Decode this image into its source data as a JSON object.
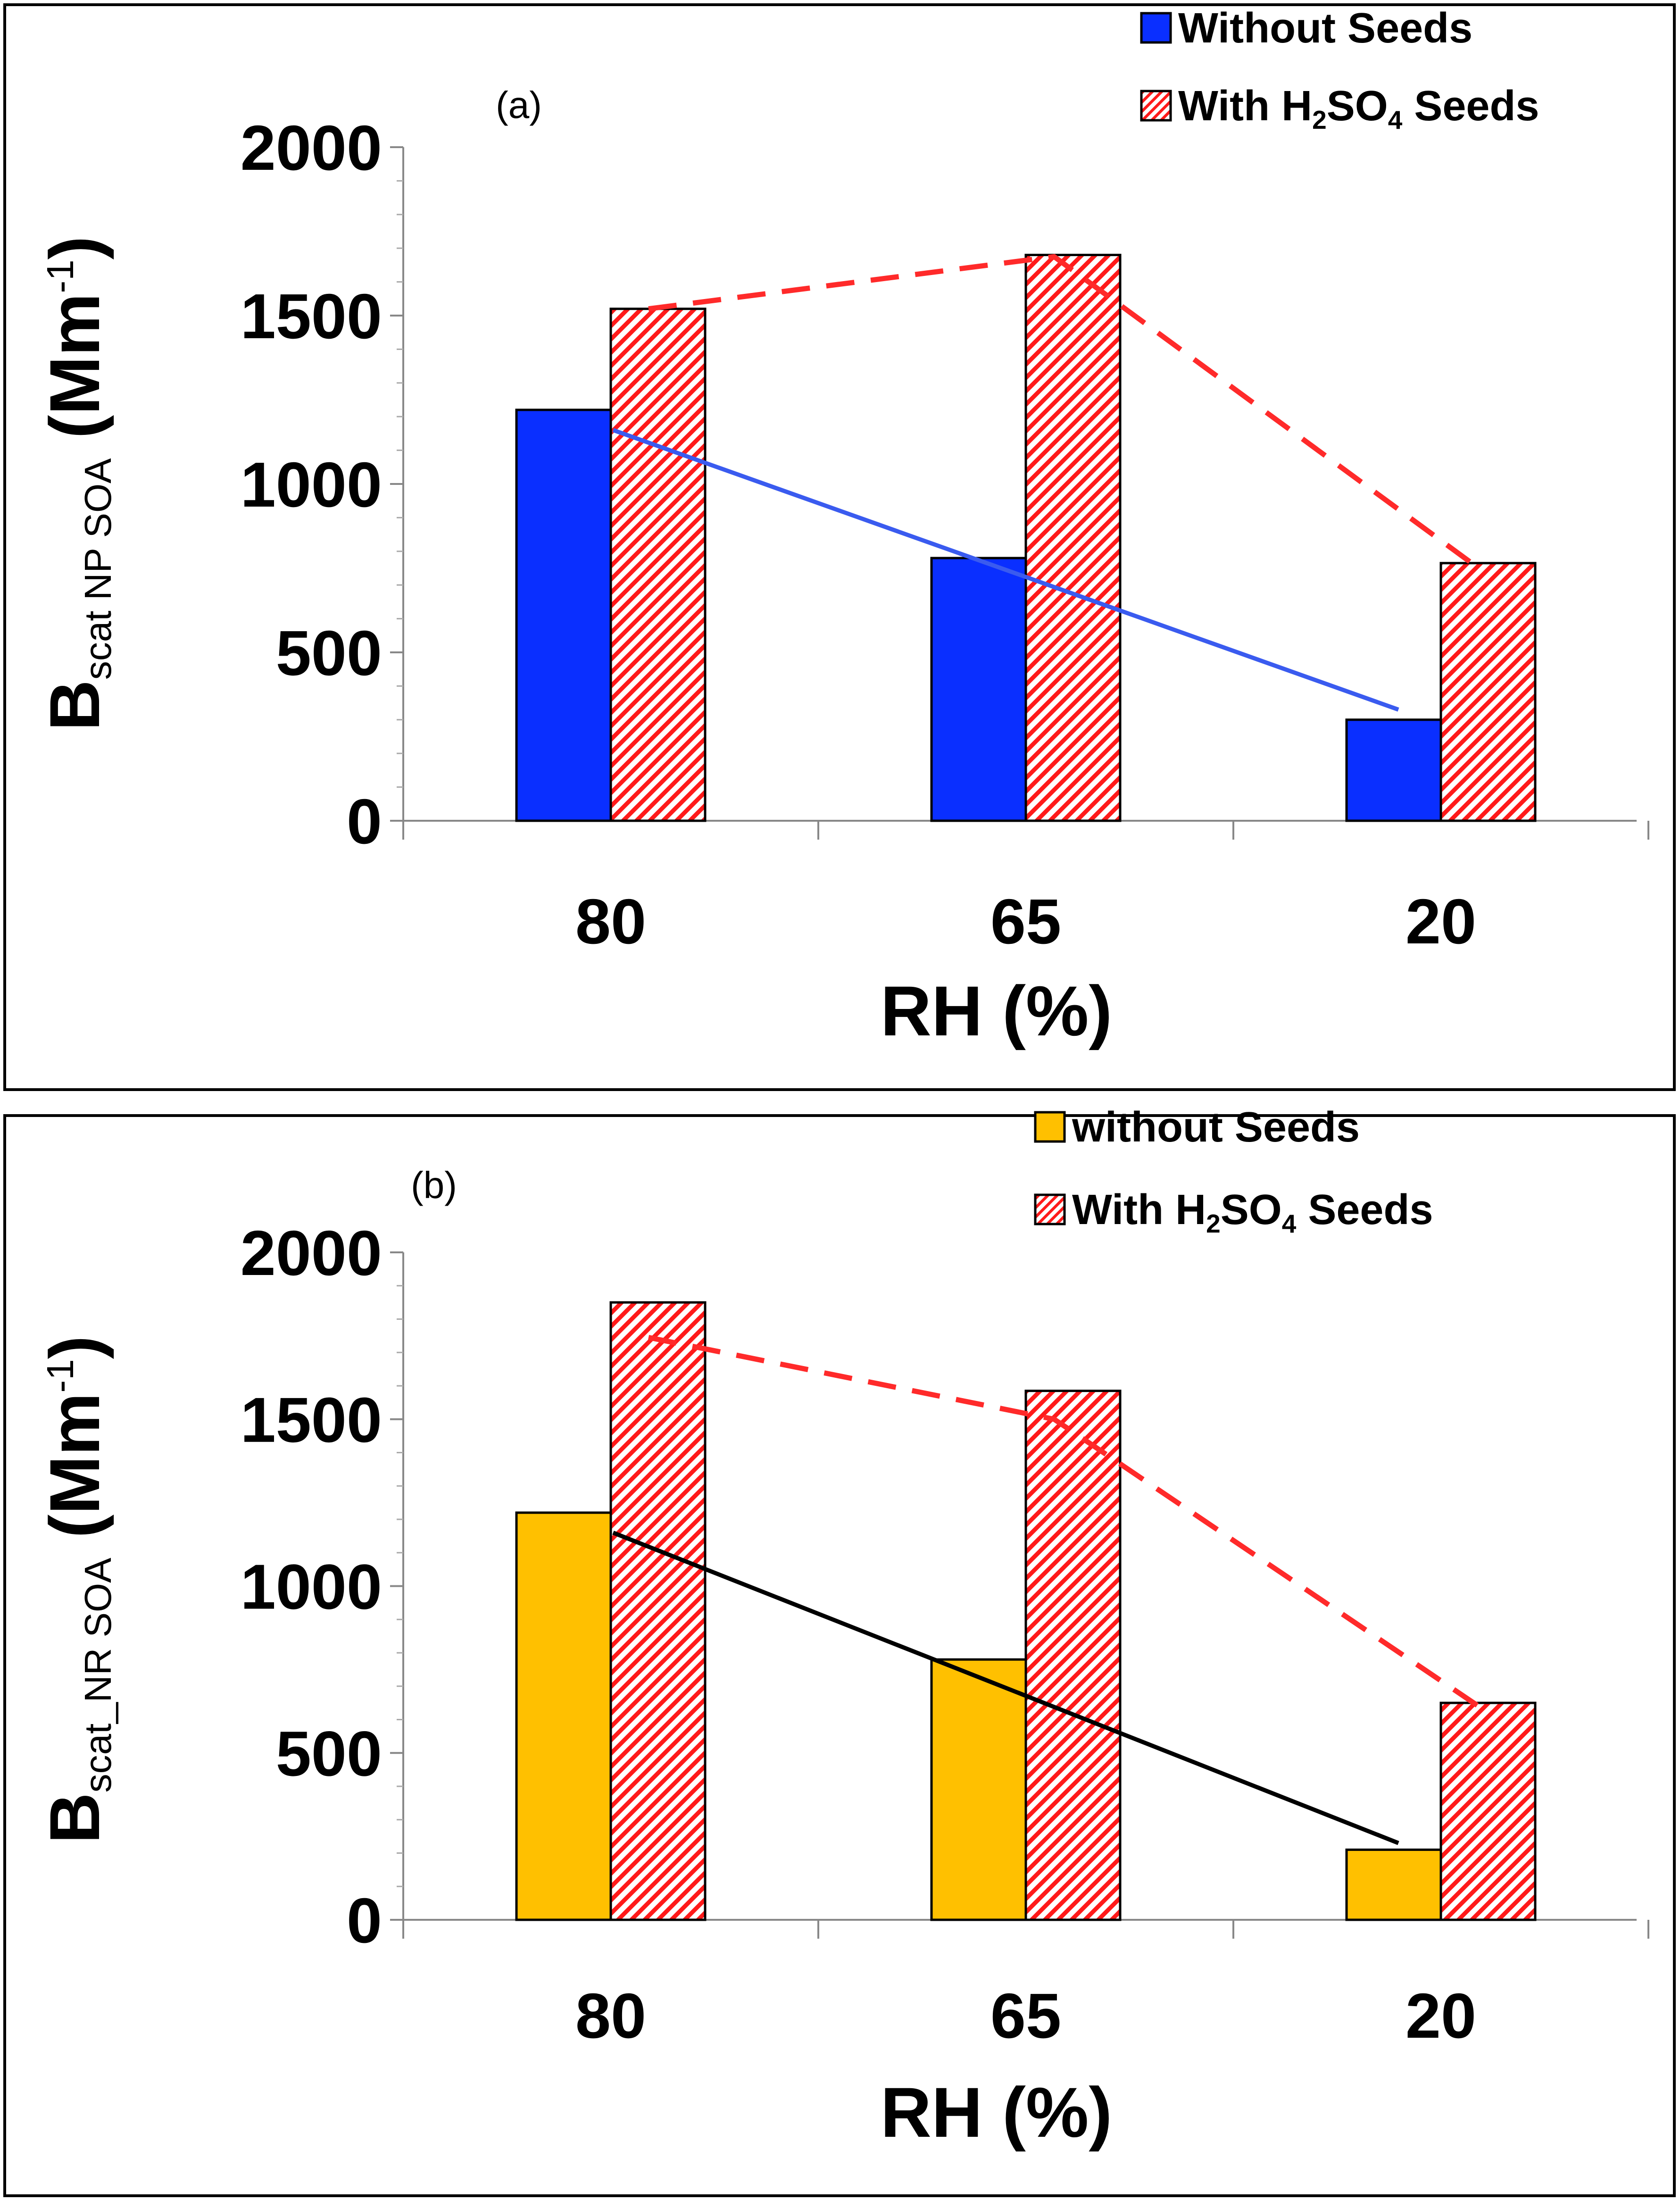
{
  "chart_data": [
    {
      "type": "bar",
      "panel_label": "(a)",
      "categories": [
        "80",
        "65",
        "20"
      ],
      "xlabel": "RH (%)",
      "ylabel": {
        "main": "B",
        "sub": "scat NP SOA",
        "unit_pre": " (Mm",
        "unit_sup": "-1",
        "unit_post": ")"
      },
      "ylim": [
        0,
        2000
      ],
      "yticks": [
        "0",
        "500",
        "1000",
        "1500",
        "2000"
      ],
      "series": [
        {
          "name": "Without Seeds",
          "legend": {
            "pre": "Without Seeds",
            "sub1": "",
            "mid": "",
            "sub2": "",
            "post": ""
          },
          "values": [
            1220,
            780,
            300
          ],
          "color": "#0a2fff",
          "pattern": "solid",
          "trend": {
            "start": 1160,
            "end": 330,
            "style": "solid",
            "color": "#3a5bef"
          }
        },
        {
          "name": "With H2SO4 Seeds",
          "legend": {
            "pre": "With H",
            "sub1": "2",
            "mid": "SO",
            "sub2": "4",
            "post": " Seeds"
          },
          "values": [
            1520,
            1680,
            765
          ],
          "color": "#ff1a1a",
          "pattern": "hatch",
          "trend": {
            "points": [
              1520,
              1675,
              750
            ],
            "style": "dashed",
            "color": "#ff2a2a"
          }
        }
      ]
    },
    {
      "type": "bar",
      "panel_label": "(b)",
      "categories": [
        "80",
        "65",
        "20"
      ],
      "xlabel": "RH (%)",
      "ylabel": {
        "main": "B",
        "sub": "scat_NR SOA",
        "unit_pre": " (Mm",
        "unit_sup": "-1",
        "unit_post": ")"
      },
      "ylim": [
        0,
        2000
      ],
      "yticks": [
        "0",
        "500",
        "1000",
        "1500",
        "2000"
      ],
      "series": [
        {
          "name": "without Seeds",
          "legend": {
            "pre": "without Seeds",
            "sub1": "",
            "mid": "",
            "sub2": "",
            "post": ""
          },
          "values": [
            1220,
            780,
            210
          ],
          "color": "#ffc000",
          "pattern": "solid",
          "trend": {
            "start": 1160,
            "end": 230,
            "style": "solid",
            "color": "#000000"
          }
        },
        {
          "name": "With H2SO4 Seeds",
          "legend": {
            "pre": "With H",
            "sub1": "2",
            "mid": "SO",
            "sub2": "4",
            "post": " Seeds"
          },
          "values": [
            1850,
            1585,
            650
          ],
          "color": "#ff1a1a",
          "pattern": "hatch",
          "trend": {
            "points": [
              1745,
              1500,
              640
            ],
            "style": "dashed",
            "color": "#ff2a2a"
          }
        }
      ]
    }
  ]
}
